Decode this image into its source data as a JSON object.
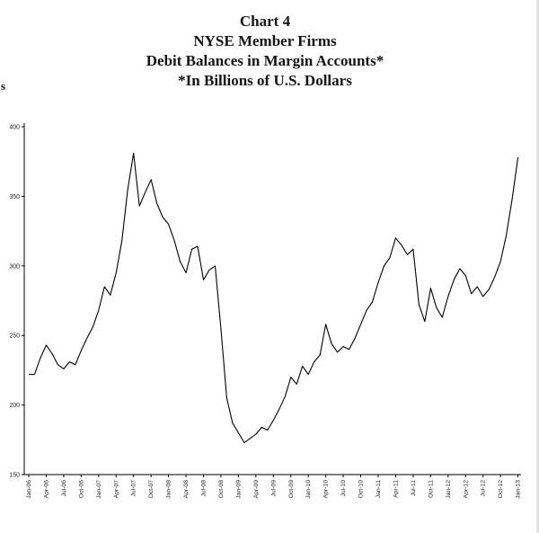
{
  "y_axis_label_fragment": "s",
  "chart_data": {
    "type": "line",
    "title": "Chart 4 - NYSE Member Firms Debit Balances in Margin Accounts (*In Billions of U.S. Dollars)",
    "title_lines": [
      "Chart 4",
      "NYSE Member Firms",
      "Debit Balances in Margin Accounts*",
      "*In Billions of U.S. Dollars"
    ],
    "xlabel": "",
    "ylabel": "",
    "series_name": "Debit balances in margin accounts ($ billions)",
    "frequency": "monthly",
    "x_start": "Jan-06",
    "x_end": "Jan-13",
    "x_tick_labels": [
      "Jan-06",
      "Apr-06",
      "Jul-06",
      "Oct-06",
      "Jan-07",
      "Apr-07",
      "Jul-07",
      "Oct-07",
      "Jan-08",
      "Apr-08",
      "Jul-08",
      "Oct-08",
      "Jan-09",
      "Apr-09",
      "Jul-09",
      "Oct-09",
      "Jan-10",
      "Apr-10",
      "Jul-10",
      "Oct-10",
      "Jan-11",
      "Apr-11",
      "Jul-11",
      "Oct-11",
      "Jan-12",
      "Apr-12",
      "Jul-12",
      "Oct-12",
      "Jan-13"
    ],
    "values": [
      222,
      222,
      234,
      243,
      237,
      229,
      226,
      231,
      229,
      239,
      248,
      256,
      268,
      285,
      279,
      295,
      318,
      355,
      381,
      343,
      353,
      362,
      345,
      335,
      330,
      318,
      303,
      295,
      312,
      314,
      290,
      297,
      300,
      255,
      205,
      187,
      180,
      173,
      176,
      179,
      184,
      182,
      189,
      197,
      206,
      220,
      215,
      228,
      222,
      231,
      236,
      258,
      244,
      238,
      242,
      240,
      248,
      258,
      268,
      274,
      288,
      300,
      306,
      320,
      315,
      308,
      312,
      272,
      260,
      284,
      270,
      263,
      278,
      290,
      298,
      293,
      280,
      285,
      278,
      283,
      292,
      303,
      322,
      348,
      378
    ],
    "ylim": [
      150,
      400
    ],
    "y_ticks": [
      150,
      200,
      250,
      300,
      350,
      400
    ],
    "grid": false,
    "legend": "none",
    "line_color": "#000000",
    "background_color": "#ffffff"
  }
}
